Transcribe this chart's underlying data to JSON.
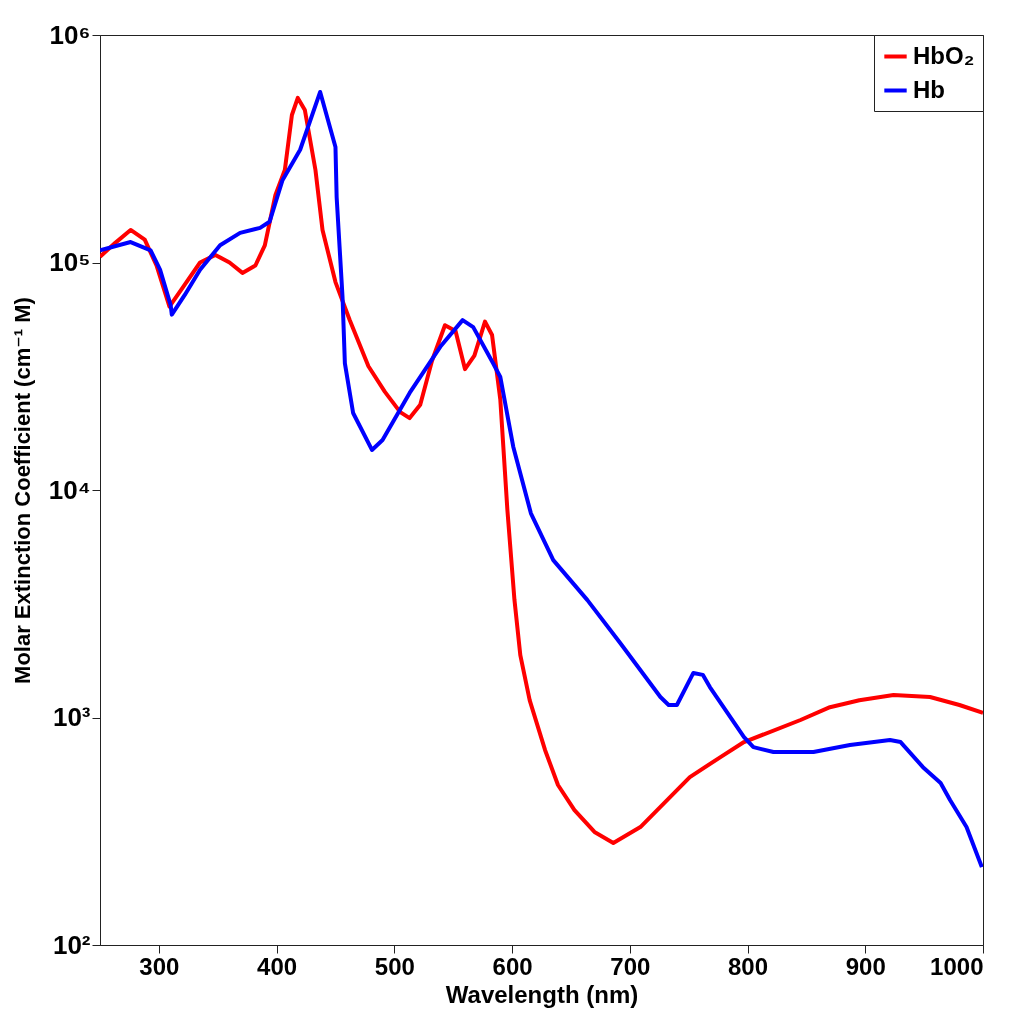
{
  "chart_data": {
    "type": "line",
    "xlabel": "Wavelength (nm)",
    "ylabel": "Molar Extinction Coefficient (cm⁻¹ M)",
    "log": "y",
    "legend": "top right",
    "grid": false,
    "marker": "none",
    "line_style": "solid",
    "xlim": [
      250,
      1000
    ],
    "xticks": [
      300,
      400,
      500,
      600,
      700,
      800,
      900,
      1000
    ],
    "ylim": [
      100,
      1000000
    ],
    "yticks": [
      {
        "value": 100,
        "label": "10²"
      },
      {
        "value": 1000,
        "label": "10³"
      },
      {
        "value": 10000,
        "label": "10⁴"
      },
      {
        "value": 100000,
        "label": "10⁵"
      },
      {
        "value": 1000000,
        "label": "10⁶"
      }
    ],
    "series": [
      {
        "name": "HbO₂",
        "color": "#ff0000",
        "x": [
          250,
          263,
          276,
          288,
          298,
          309,
          322,
          335,
          348,
          360,
          371,
          382,
          390,
          399,
          407,
          413,
          418,
          424,
          433,
          439,
          450,
          462,
          478,
          492,
          505,
          513,
          522,
          532,
          543,
          552,
          560,
          568,
          577,
          583,
          590,
          596,
          602,
          607,
          615,
          628,
          639,
          653,
          670,
          686,
          709,
          730,
          751,
          777,
          797,
          845,
          870,
          895,
          924,
          955,
          980,
          1000
        ],
        "values": [
          106000,
          122000,
          139000,
          126000,
          97000,
          64000,
          80000,
          100000,
          108000,
          100000,
          90000,
          97000,
          119000,
          198000,
          255000,
          445000,
          529000,
          468000,
          255000,
          139000,
          82000,
          56000,
          35000,
          27000,
          22000,
          20700,
          23700,
          37000,
          53000,
          50000,
          34000,
          39000,
          55000,
          48000,
          25000,
          8200,
          3300,
          1880,
          1190,
          720,
          505,
          392,
          314,
          281,
          330,
          425,
          547,
          670,
          780,
          975,
          1110,
          1190,
          1255,
          1230,
          1135,
          1048
        ]
      },
      {
        "name": "Hb",
        "color": "#0000ff",
        "x": [
          250,
          276,
          293,
          301,
          310,
          311,
          322,
          335,
          352,
          369,
          386,
          394,
          405,
          420,
          437,
          450,
          451,
          456,
          458,
          465,
          481,
          490,
          513,
          539,
          558,
          567,
          584,
          590,
          601,
          616,
          635,
          664,
          692,
          726,
          733,
          740,
          754,
          762,
          768,
          797,
          805,
          822,
          856,
          887,
          921,
          930,
          949,
          964,
          972,
          986,
          999
        ],
        "values": [
          113000,
          123000,
          113000,
          93000,
          65000,
          59000,
          72000,
          93000,
          119000,
          135000,
          142000,
          151000,
          230000,
          313000,
          562000,
          322000,
          194000,
          70500,
          36000,
          21800,
          15000,
          16600,
          26700,
          42600,
          55800,
          52000,
          36000,
          31400,
          15500,
          7900,
          4920,
          3280,
          2120,
          1230,
          1135,
          1135,
          1570,
          1540,
          1360,
          820,
          741,
          705,
          705,
          757,
          796,
          780,
          605,
          515,
          434,
          330,
          220
        ]
      }
    ]
  }
}
